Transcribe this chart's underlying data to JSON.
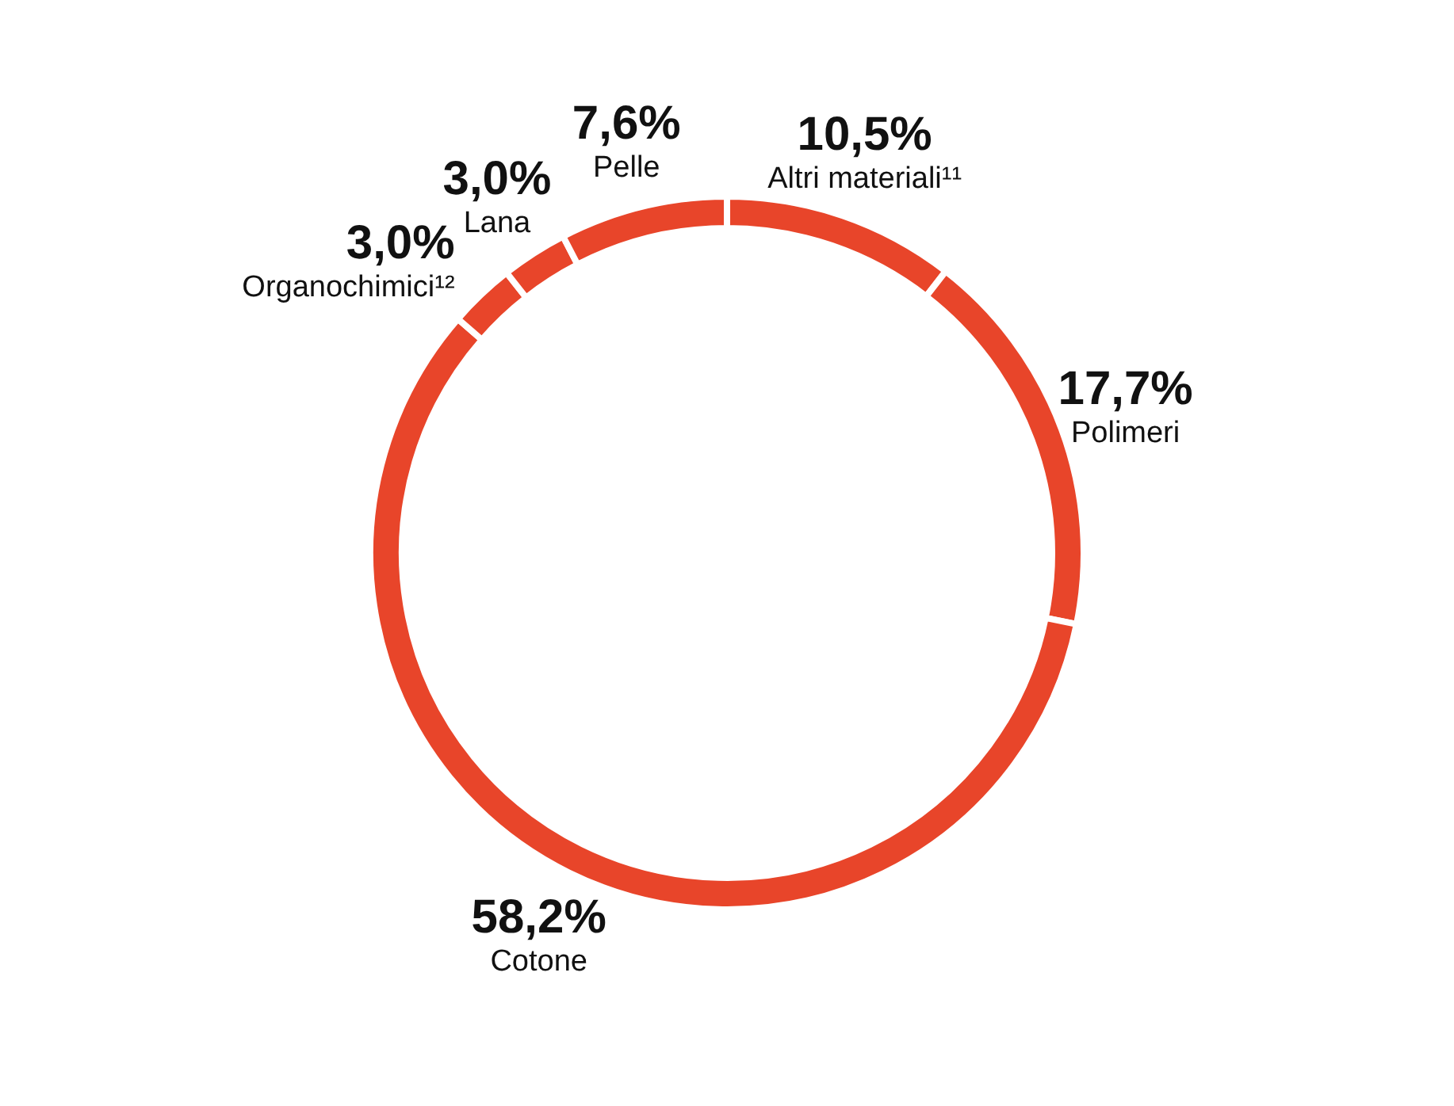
{
  "chart_data": {
    "type": "donut",
    "categories": [
      "Altri materiali¹¹",
      "Polimeri",
      "Cotone",
      "Organochimici¹²",
      "Lana",
      "Pelle"
    ],
    "values": [
      10.5,
      17.7,
      58.2,
      3.0,
      3.0,
      7.6
    ],
    "value_labels": [
      "10,5%",
      "17,7%",
      "58,2%",
      "3,0%",
      "3,0%",
      "7,6%"
    ],
    "colors": [
      "#e8452a",
      "#e8452a",
      "#e8452a",
      "#e8452a",
      "#e8452a",
      "#e8452a"
    ],
    "legend": false
  }
}
